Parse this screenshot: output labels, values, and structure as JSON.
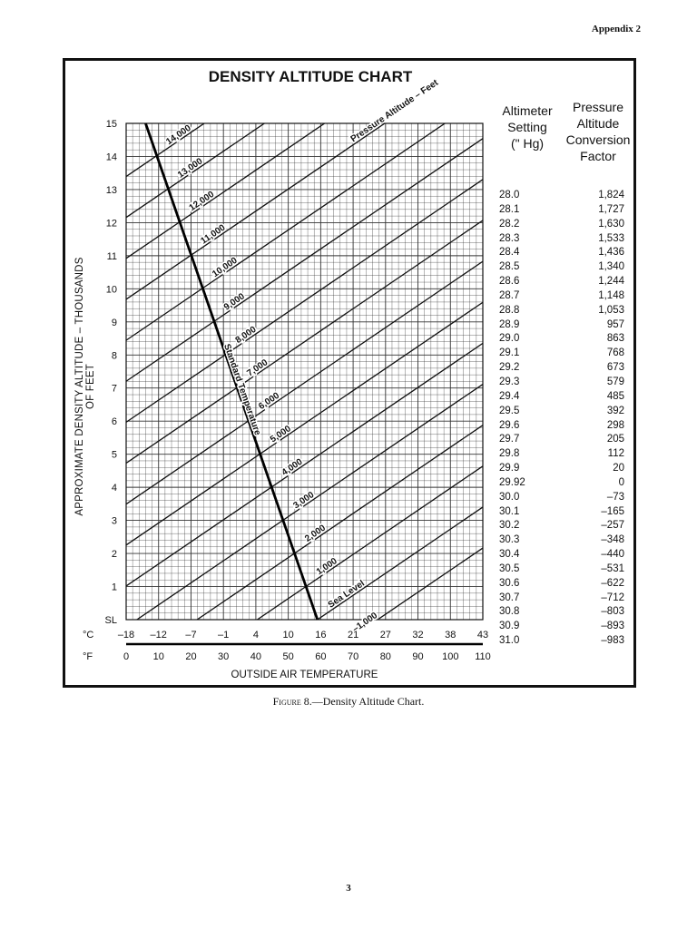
{
  "page": {
    "header": "Appendix 2",
    "page_number": "3",
    "caption_figure": "Figure 8.",
    "caption_text": "—Density Altitude Chart."
  },
  "table": {
    "col1_header": [
      "Altimeter",
      "Setting",
      "(\" Hg)"
    ],
    "col2_header": [
      "Pressure",
      "Altitude",
      "Conversion",
      "Factor"
    ],
    "rows": [
      [
        "28.0",
        "1,824"
      ],
      [
        "28.1",
        "1,727"
      ],
      [
        "28.2",
        "1,630"
      ],
      [
        "28.3",
        "1,533"
      ],
      [
        "28.4",
        "1,436"
      ],
      [
        "28.5",
        "1,340"
      ],
      [
        "28.6",
        "1,244"
      ],
      [
        "28.7",
        "1,148"
      ],
      [
        "28.8",
        "1,053"
      ],
      [
        "28.9",
        "957"
      ],
      [
        "29.0",
        "863"
      ],
      [
        "29.1",
        "768"
      ],
      [
        "29.2",
        "673"
      ],
      [
        "29.3",
        "579"
      ],
      [
        "29.4",
        "485"
      ],
      [
        "29.5",
        "392"
      ],
      [
        "29.6",
        "298"
      ],
      [
        "29.7",
        "205"
      ],
      [
        "29.8",
        "112"
      ],
      [
        "29.9",
        "20"
      ],
      [
        "29.92",
        "0"
      ],
      [
        "30.0",
        "–73"
      ],
      [
        "30.1",
        "–165"
      ],
      [
        "30.2",
        "–257"
      ],
      [
        "30.3",
        "–348"
      ],
      [
        "30.4",
        "–440"
      ],
      [
        "30.5",
        "–531"
      ],
      [
        "30.6",
        "–622"
      ],
      [
        "30.7",
        "–712"
      ],
      [
        "30.8",
        "–803"
      ],
      [
        "30.9",
        "–893"
      ],
      [
        "31.0",
        "–983"
      ]
    ]
  },
  "chart_data": {
    "type": "line",
    "title": "DENSITY ALTITUDE CHART",
    "ylabel": "APPROXIMATE DENSITY ALTITUDE – THOUSANDS OF FEET",
    "xlabel": "OUTSIDE AIR TEMPERATURE",
    "x_units_c": "°C",
    "x_units_f": "°F",
    "xlim_f": [
      0,
      110
    ],
    "ylim": [
      0,
      15
    ],
    "y_ticks": [
      "SL",
      "1",
      "2",
      "3",
      "4",
      "5",
      "6",
      "7",
      "8",
      "9",
      "10",
      "11",
      "12",
      "13",
      "14",
      "15"
    ],
    "x_ticks_c": [
      "–18",
      "–12",
      "–7",
      "–1",
      "4",
      "10",
      "16",
      "21",
      "27",
      "32",
      "38",
      "43"
    ],
    "x_ticks_f": [
      "0",
      "10",
      "20",
      "30",
      "40",
      "50",
      "60",
      "70",
      "80",
      "90",
      "100",
      "110"
    ],
    "grid": true,
    "pressure_altitude_lines": [
      {
        "label": "–1,000",
        "pa": -1
      },
      {
        "label": "Sea Level",
        "pa": 0
      },
      {
        "label": "1,000",
        "pa": 1
      },
      {
        "label": "2,000",
        "pa": 2
      },
      {
        "label": "3,000",
        "pa": 3
      },
      {
        "label": "4,000",
        "pa": 4
      },
      {
        "label": "5,000",
        "pa": 5
      },
      {
        "label": "6,000",
        "pa": 6
      },
      {
        "label": "7,000",
        "pa": 7
      },
      {
        "label": "8,000",
        "pa": 8
      },
      {
        "label": "9,000",
        "pa": 9
      },
      {
        "label": "10,000",
        "pa": 10
      },
      {
        "label": "11,000",
        "pa": 11
      },
      {
        "label": "12,000",
        "pa": 12
      },
      {
        "label": "13,000",
        "pa": 13
      },
      {
        "label": "14,000",
        "pa": 14
      }
    ],
    "pressure_altitude_label": "Pressure Altitude – Feet",
    "standard_temperature_label": "Standard Temperature",
    "standard_temperature_line": [
      {
        "temp_f": 59,
        "density_alt": 0
      },
      {
        "temp_f": 6,
        "density_alt": 15
      }
    ]
  }
}
